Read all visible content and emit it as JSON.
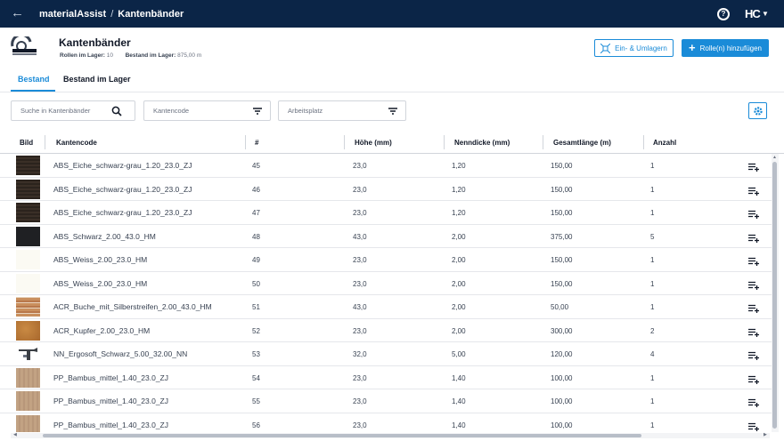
{
  "topbar": {
    "back_icon": "arrow-left-icon",
    "app_name": "materialAssist",
    "separator": "/",
    "section": "Kantenbänder",
    "logo": "HC",
    "bg_color": "#0b2547"
  },
  "header": {
    "title": "Kantenbänder",
    "rollen_label": "Rollen im Lager:",
    "rollen_value": "10",
    "bestand_label": "Bestand im Lager:",
    "bestand_value": "875,00 m",
    "ein_umlagern_label": "Ein- & Umlagern",
    "add_label": "Rolle(n) hinzufügen",
    "accent_color": "#1a8bd8"
  },
  "tabs": [
    {
      "label": "Bestand",
      "active": true
    },
    {
      "label": "Bestand im Lager",
      "active": false
    }
  ],
  "filters": {
    "search_placeholder": "Suche in Kantenbänder",
    "kantencode_label": "Kantencode",
    "arbeitsplatz_label": "Arbeitsplatz"
  },
  "table": {
    "columns": [
      "Bild",
      "Kantencode",
      "#",
      "Höhe (mm)",
      "Nenndicke (mm)",
      "Gesamtlänge (m)",
      "Anzahl"
    ],
    "rows": [
      {
        "code": "ABS_Eiche_schwarz-grau_1.20_23.0_ZJ",
        "nr": "45",
        "hoehe": "23,0",
        "dicke": "1,20",
        "laenge": "150,00",
        "anzahl": "1",
        "thumb": "dark-wood"
      },
      {
        "code": "ABS_Eiche_schwarz-grau_1.20_23.0_ZJ",
        "nr": "46",
        "hoehe": "23,0",
        "dicke": "1,20",
        "laenge": "150,00",
        "anzahl": "1",
        "thumb": "dark-wood"
      },
      {
        "code": "ABS_Eiche_schwarz-grau_1.20_23.0_ZJ",
        "nr": "47",
        "hoehe": "23,0",
        "dicke": "1,20",
        "laenge": "150,00",
        "anzahl": "1",
        "thumb": "dark-wood"
      },
      {
        "code": "ABS_Schwarz_2.00_43.0_HM",
        "nr": "48",
        "hoehe": "43,0",
        "dicke": "2,00",
        "laenge": "375,00",
        "anzahl": "5",
        "thumb": "black"
      },
      {
        "code": "ABS_Weiss_2.00_23.0_HM",
        "nr": "49",
        "hoehe": "23,0",
        "dicke": "2,00",
        "laenge": "150,00",
        "anzahl": "1",
        "thumb": "white"
      },
      {
        "code": "ABS_Weiss_2.00_23.0_HM",
        "nr": "50",
        "hoehe": "23,0",
        "dicke": "2,00",
        "laenge": "150,00",
        "anzahl": "1",
        "thumb": "white"
      },
      {
        "code": "ACR_Buche_mit_Silberstreifen_2.00_43.0_HM",
        "nr": "51",
        "hoehe": "43,0",
        "dicke": "2,00",
        "laenge": "50,00",
        "anzahl": "1",
        "thumb": "beech-stripes"
      },
      {
        "code": "ACR_Kupfer_2.00_23.0_HM",
        "nr": "52",
        "hoehe": "23,0",
        "dicke": "2,00",
        "laenge": "300,00",
        "anzahl": "2",
        "thumb": "copper"
      },
      {
        "code": "NN_Ergosoft_Schwarz_5.00_32.00_NN",
        "nr": "53",
        "hoehe": "32,0",
        "dicke": "5,00",
        "laenge": "120,00",
        "anzahl": "4",
        "thumb": "profile"
      },
      {
        "code": "PP_Bambus_mittel_1.40_23.0_ZJ",
        "nr": "54",
        "hoehe": "23,0",
        "dicke": "1,40",
        "laenge": "100,00",
        "anzahl": "1",
        "thumb": "bamboo"
      },
      {
        "code": "PP_Bambus_mittel_1.40_23.0_ZJ",
        "nr": "55",
        "hoehe": "23,0",
        "dicke": "1,40",
        "laenge": "100,00",
        "anzahl": "1",
        "thumb": "bamboo"
      },
      {
        "code": "PP_Bambus_mittel_1.40_23.0_ZJ",
        "nr": "56",
        "hoehe": "23,0",
        "dicke": "1,40",
        "laenge": "100,00",
        "anzahl": "1",
        "thumb": "bamboo"
      }
    ]
  },
  "icons": {
    "row_action": "playlist-add-icon",
    "settings": "gear-icon",
    "search": "search-icon",
    "filter": "filter-icon"
  }
}
